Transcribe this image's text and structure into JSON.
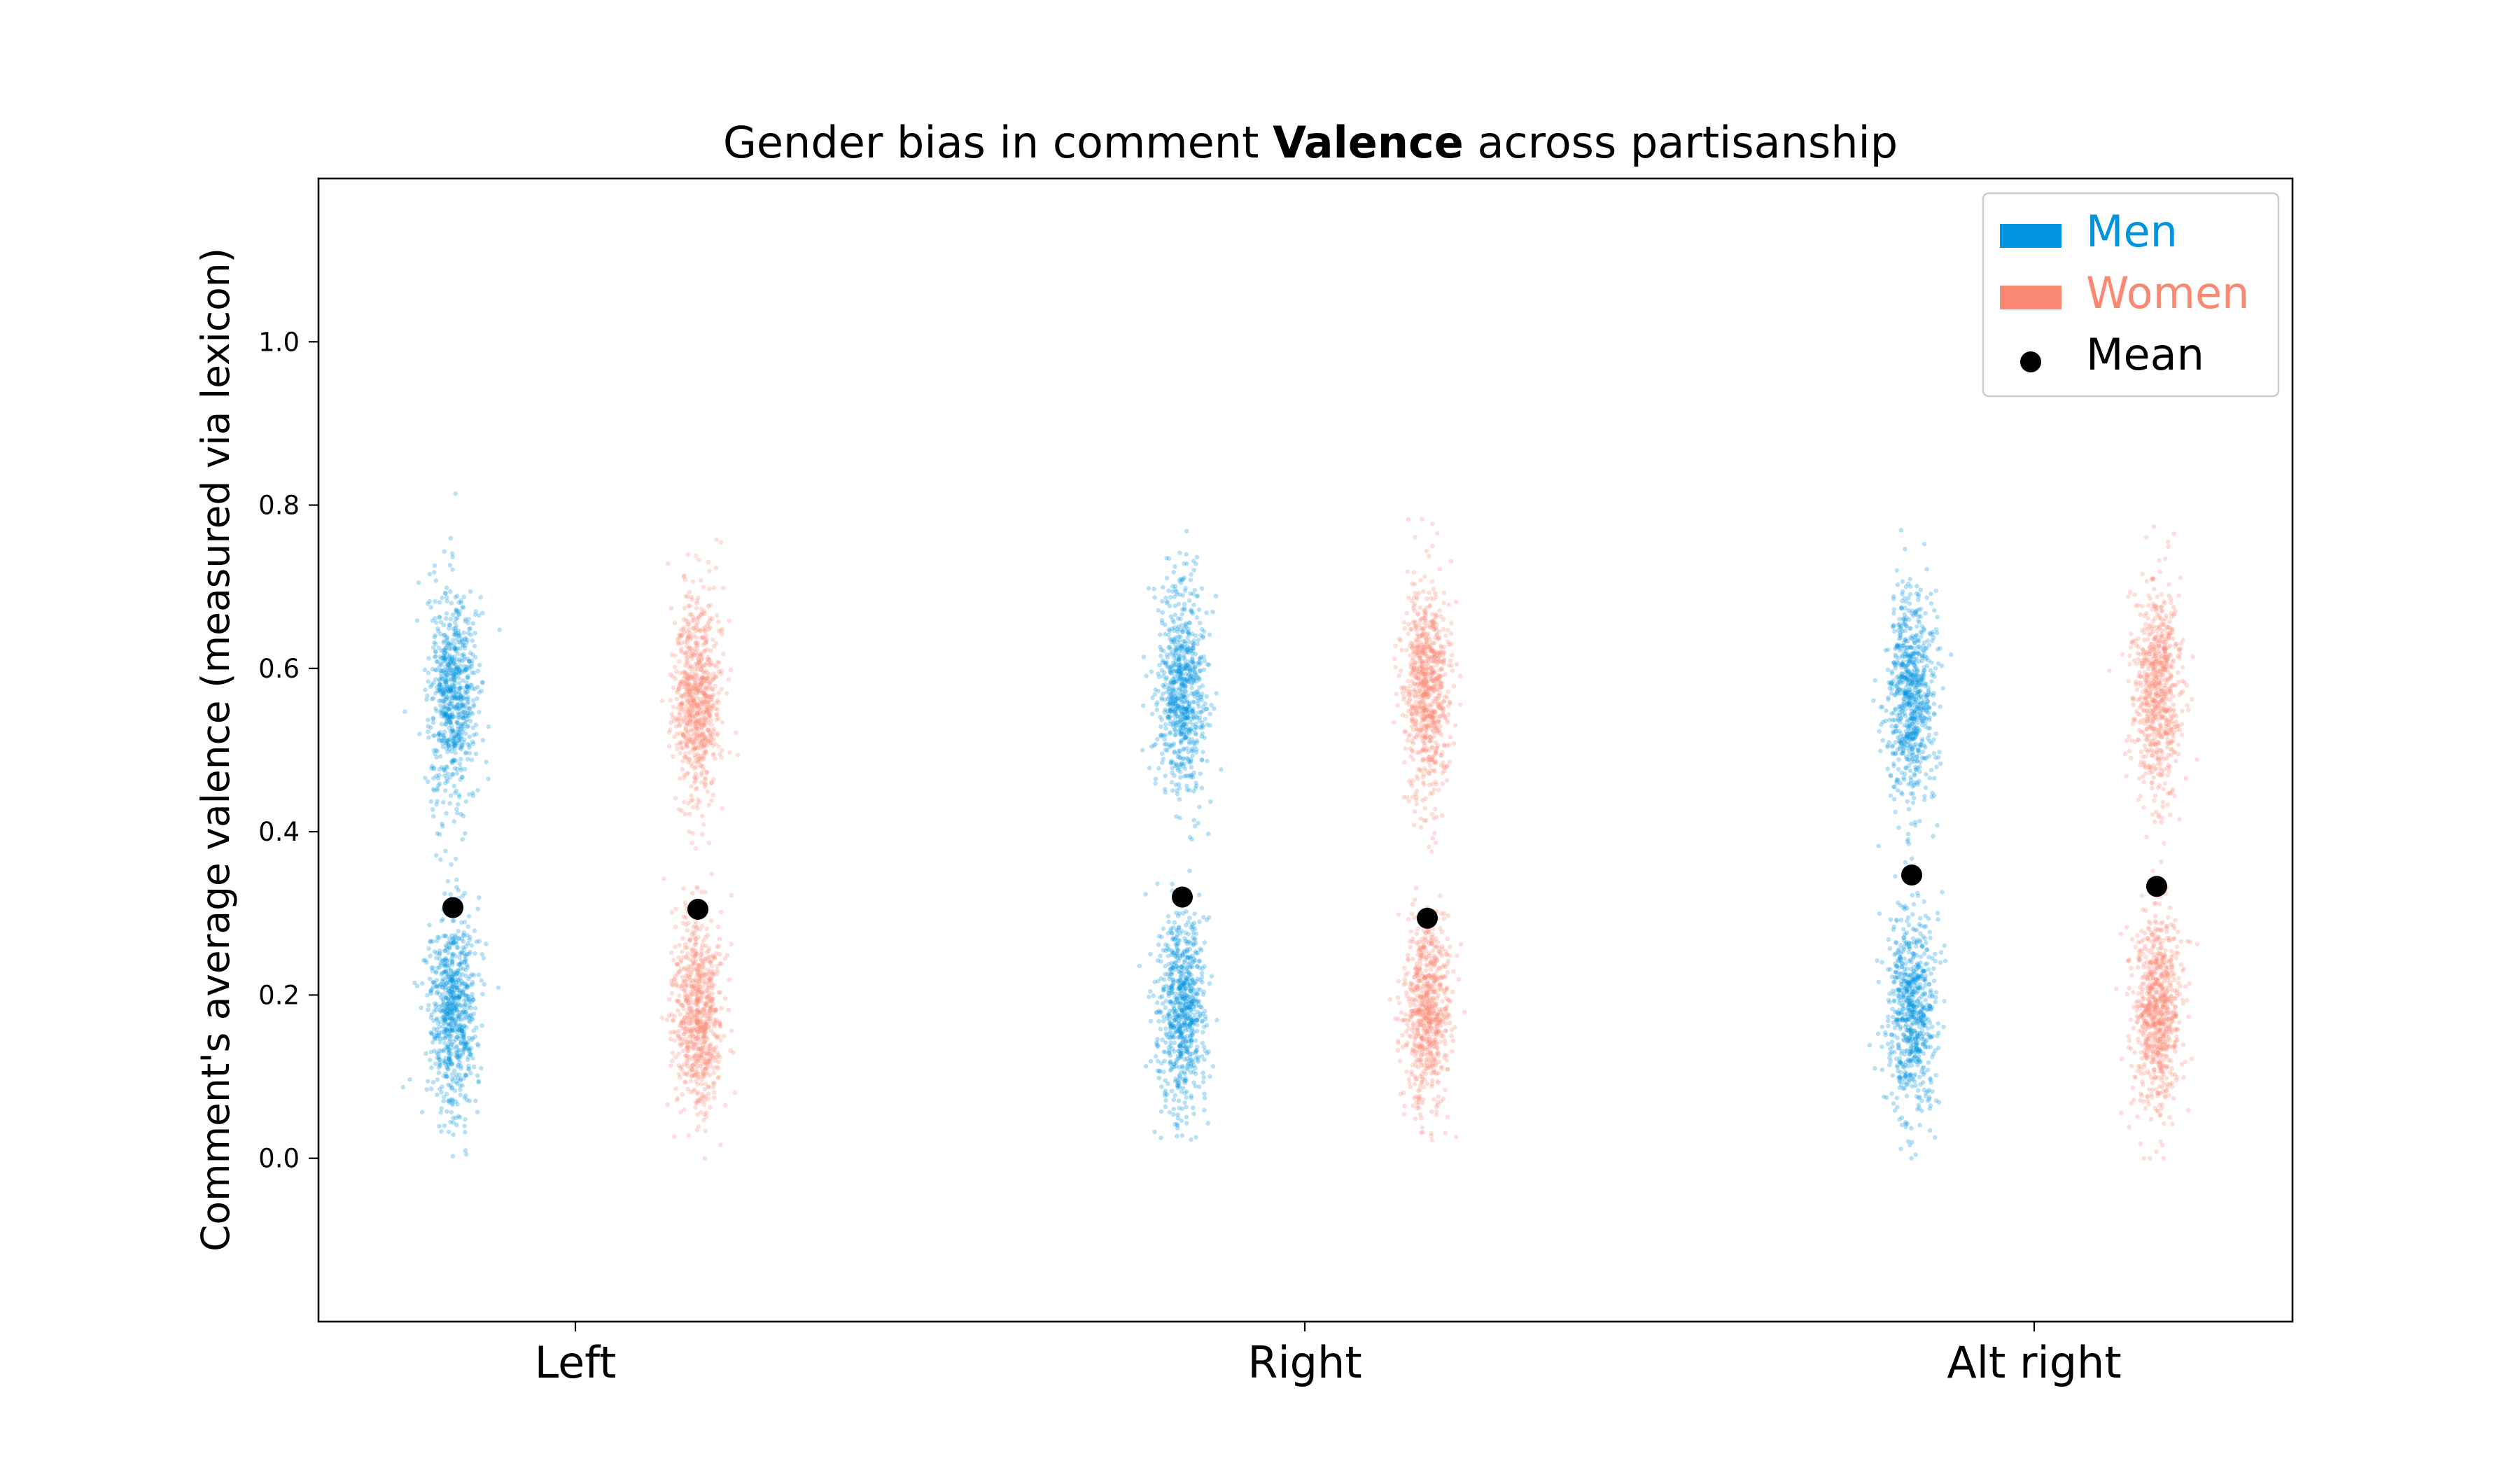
{
  "chart_data": {
    "type": "scatter",
    "title_parts": [
      "Gender bias in comment ",
      "Valence",
      " across partisanship"
    ],
    "xlabel": "",
    "ylabel": "Comment's average valence (measured via lexicon)",
    "categories": [
      "Left",
      "Right",
      "Alt right"
    ],
    "ylim": [
      -0.2,
      1.2
    ],
    "yticks": [
      0.0,
      0.2,
      0.4,
      0.6,
      0.8,
      1.0
    ],
    "ytick_labels": [
      "0.0",
      "0.2",
      "0.4",
      "0.6",
      "0.8",
      "1.0"
    ],
    "series": [
      {
        "name": "Men",
        "color": "#0094de",
        "means": [
          0.307,
          0.32,
          0.347
        ]
      },
      {
        "name": "Women",
        "color": "#fa8872",
        "means": [
          0.305,
          0.294,
          0.333
        ]
      }
    ],
    "mean_marker": {
      "name": "Mean",
      "color": "#000000"
    },
    "distribution": {
      "modes": [
        0.18,
        0.57
      ],
      "spread": [
        0.06,
        0.065
      ],
      "range": [
        0.0,
        1.0
      ]
    },
    "legend": {
      "position": "top-right",
      "entries": [
        "Men",
        "Women",
        "Mean"
      ]
    },
    "grid": false
  }
}
